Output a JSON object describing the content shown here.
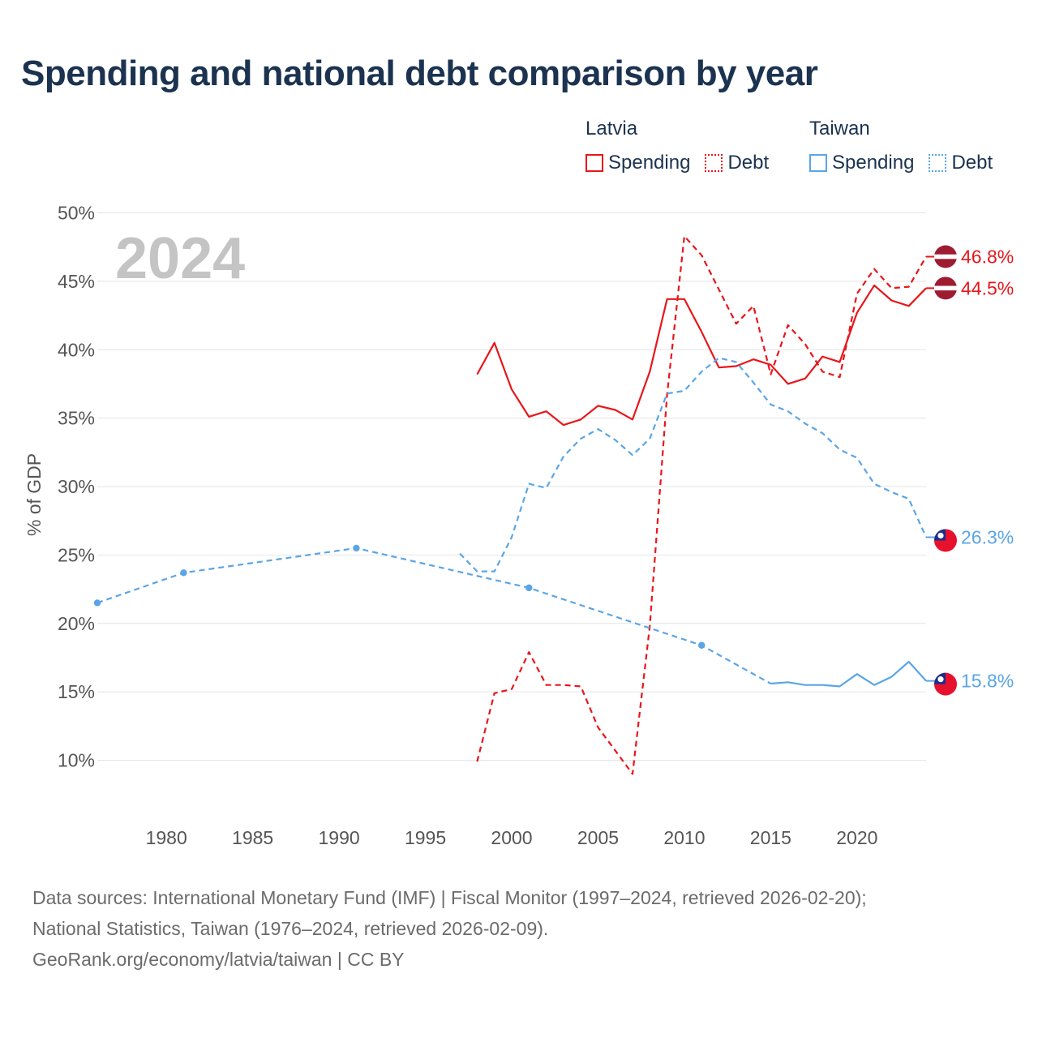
{
  "title": "Spending and national debt comparison by year",
  "legend": {
    "latvia": {
      "country": "Latvia",
      "spending": "Spending",
      "debt": "Debt",
      "color": "#e8161b"
    },
    "taiwan": {
      "country": "Taiwan",
      "spending": "Spending",
      "debt": "Debt",
      "color": "#5aa5e6"
    }
  },
  "watermark_year": "2024",
  "sources": {
    "line1": "Data sources: International Monetary Fund (IMF) | Fiscal Monitor (1997–2024, retrieved 2026-02-20);",
    "line2": "National Statistics, Taiwan (1976–2024, retrieved 2026-02-09).",
    "line3": "GeoRank.org/economy/latvia/taiwan | CC BY"
  },
  "chart_data": {
    "type": "line",
    "title": "Spending and national debt comparison by year",
    "ylabel": "% of GDP",
    "xlabel": "",
    "xlim": [
      1976,
      2024
    ],
    "ylim": [
      7,
      50
    ],
    "x_ticks": [
      1980,
      1985,
      1990,
      1995,
      2000,
      2005,
      2010,
      2015,
      2020
    ],
    "y_ticks": [
      10,
      15,
      20,
      25,
      30,
      35,
      40,
      45,
      50
    ],
    "y_tick_labels": [
      "10%",
      "15%",
      "20%",
      "25%",
      "30%",
      "35%",
      "40%",
      "45%",
      "50%"
    ],
    "grid": true,
    "series": [
      {
        "name": "Latvia Spending",
        "country": "latvia",
        "style": "solid",
        "color": "#e8161b",
        "end_label": "44.5%",
        "markers": false,
        "x": [
          1998,
          1999,
          2000,
          2001,
          2002,
          2003,
          2004,
          2005,
          2006,
          2007,
          2008,
          2009,
          2010,
          2011,
          2012,
          2013,
          2014,
          2015,
          2016,
          2017,
          2018,
          2019,
          2020,
          2021,
          2022,
          2023,
          2024
        ],
        "values": [
          38.2,
          40.5,
          37.1,
          35.1,
          35.5,
          34.5,
          34.9,
          35.9,
          35.6,
          34.9,
          38.4,
          43.7,
          43.7,
          41.3,
          38.7,
          38.8,
          39.3,
          38.9,
          37.5,
          37.9,
          39.5,
          39.1,
          42.7,
          44.7,
          43.6,
          43.2,
          44.5
        ]
      },
      {
        "name": "Latvia Debt",
        "country": "latvia",
        "style": "dashed",
        "color": "#e8161b",
        "end_label": "46.8%",
        "markers": false,
        "x": [
          1998,
          1999,
          2000,
          2001,
          2002,
          2003,
          2004,
          2005,
          2006,
          2007,
          2008,
          2009,
          2010,
          2011,
          2012,
          2013,
          2014,
          2015,
          2016,
          2017,
          2018,
          2019,
          2020,
          2021,
          2022,
          2023,
          2024
        ],
        "values": [
          9.9,
          14.9,
          15.2,
          17.9,
          15.5,
          15.5,
          15.4,
          12.4,
          10.7,
          9.0,
          19.8,
          36.7,
          48.3,
          46.9,
          44.4,
          41.9,
          43.2,
          38.2,
          41.8,
          40.4,
          38.4,
          38.0,
          44.1,
          45.9,
          44.5,
          44.6,
          46.8
        ]
      },
      {
        "name": "Taiwan Spending",
        "country": "taiwan",
        "style": "solid",
        "color": "#5aa5e6",
        "end_label": "15.8%",
        "markers": false,
        "x": [
          2015,
          2016,
          2017,
          2018,
          2019,
          2020,
          2021,
          2022,
          2023,
          2024
        ],
        "values": [
          15.6,
          15.7,
          15.5,
          15.5,
          15.4,
          16.3,
          15.5,
          16.1,
          17.2,
          15.8
        ]
      },
      {
        "name": "Taiwan Debt",
        "country": "taiwan",
        "style": "dashed",
        "color": "#5aa5e6",
        "end_label": "26.3%",
        "markers": false,
        "x": [
          1997,
          1998,
          1999,
          2000,
          2001,
          2002,
          2003,
          2004,
          2005,
          2006,
          2007,
          2008,
          2009,
          2010,
          2011,
          2012,
          2013,
          2014,
          2015,
          2016,
          2017,
          2018,
          2019,
          2020,
          2021,
          2022,
          2023,
          2024
        ],
        "values": [
          25.1,
          23.8,
          23.8,
          26.3,
          30.2,
          29.9,
          32.2,
          33.5,
          34.2,
          33.4,
          32.3,
          33.5,
          36.8,
          37.0,
          38.4,
          39.4,
          39.1,
          37.6,
          36.0,
          35.5,
          34.6,
          33.9,
          32.7,
          32.1,
          30.2,
          29.6,
          29.1,
          26.3
        ]
      },
      {
        "name": "Taiwan Debt (early)",
        "country": "taiwan",
        "style": "dashed",
        "color": "#5aa5e6",
        "end_label": "",
        "markers": true,
        "x": [
          1976,
          1981,
          1991,
          2001,
          2011,
          2015
        ],
        "values": [
          21.5,
          23.7,
          25.5,
          22.6,
          18.4,
          15.6
        ]
      }
    ]
  }
}
